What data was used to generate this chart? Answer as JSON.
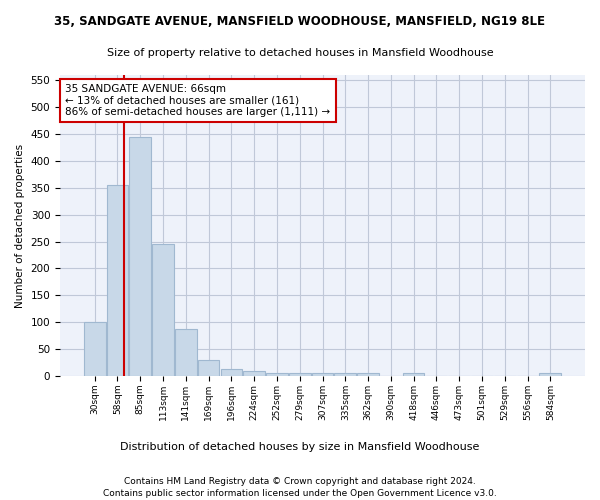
{
  "title": "35, SANDGATE AVENUE, MANSFIELD WOODHOUSE, MANSFIELD, NG19 8LE",
  "subtitle": "Size of property relative to detached houses in Mansfield Woodhouse",
  "xlabel": "Distribution of detached houses by size in Mansfield Woodhouse",
  "ylabel": "Number of detached properties",
  "footer_line1": "Contains HM Land Registry data © Crown copyright and database right 2024.",
  "footer_line2": "Contains public sector information licensed under the Open Government Licence v3.0.",
  "bar_labels": [
    "30sqm",
    "58sqm",
    "85sqm",
    "113sqm",
    "141sqm",
    "169sqm",
    "196sqm",
    "224sqm",
    "252sqm",
    "279sqm",
    "307sqm",
    "335sqm",
    "362sqm",
    "390sqm",
    "418sqm",
    "446sqm",
    "473sqm",
    "501sqm",
    "529sqm",
    "556sqm",
    "584sqm"
  ],
  "bar_values": [
    100,
    355,
    445,
    245,
    88,
    30,
    13,
    9,
    5,
    5,
    5,
    5,
    5,
    0,
    5,
    0,
    0,
    0,
    0,
    0,
    5
  ],
  "bar_color": "#c8d8e8",
  "bar_edge_color": "#a0b8d0",
  "bg_color": "#eef2fa",
  "grid_color": "#c0c8d8",
  "annotation_text": "35 SANDGATE AVENUE: 66sqm\n← 13% of detached houses are smaller (161)\n86% of semi-detached houses are larger (1,111) →",
  "vline_color": "#cc0000",
  "ylim": [
    0,
    560
  ],
  "yticks": [
    0,
    50,
    100,
    150,
    200,
    250,
    300,
    350,
    400,
    450,
    500,
    550
  ]
}
